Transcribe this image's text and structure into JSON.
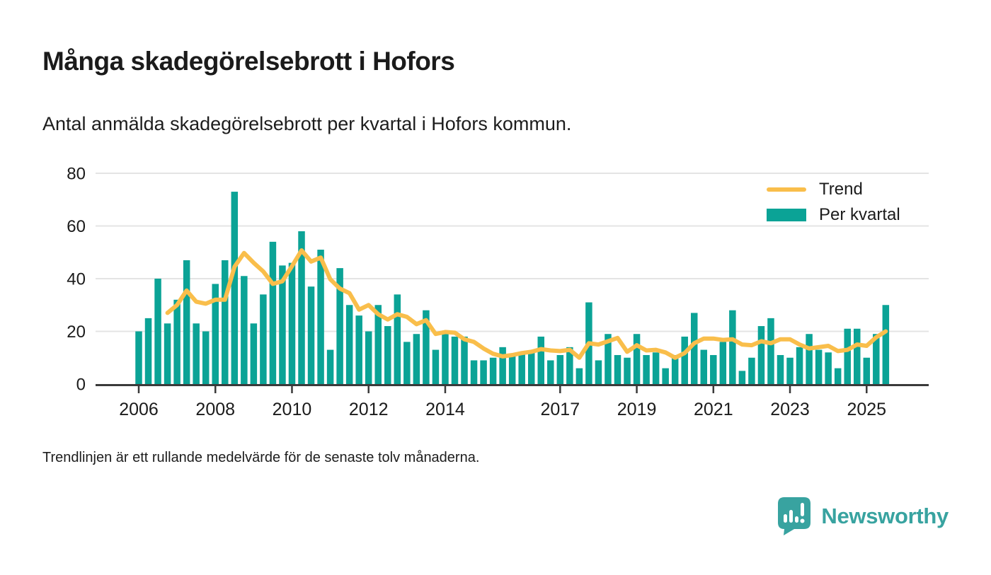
{
  "header": {
    "title": "Många skadegörelsebrott i Hofors",
    "subtitle": "Antal anmälda skadegörelsebrott per kvartal i Hofors kommun."
  },
  "legend": {
    "trend_label": "Trend",
    "bars_label": "Per kvartal"
  },
  "footer": {
    "note": "Trendlinjen är ett rullande medelvärde för de senaste tolv månaderna.",
    "brand": "Newsworthy"
  },
  "colors": {
    "bar": "#0ba396",
    "trend": "#f9be4b",
    "grid": "#e4e4e4",
    "axis": "#3a3a3a",
    "text": "#1b1b1b",
    "brand": "#38a3a0"
  },
  "chart_data": {
    "type": "bar",
    "title": "Många skadegörelsebrott i Hofors",
    "subtitle": "Antal anmälda skadegörelsebrott per kvartal i Hofors kommun.",
    "x_start": "2006 Q1",
    "x_end": "2025 Q3",
    "frequency": "quarterly",
    "ylim": [
      0,
      80
    ],
    "y_ticks": [
      0,
      20,
      40,
      60,
      80
    ],
    "x_tick_labels": [
      "2006",
      "2008",
      "2010",
      "2012",
      "2014",
      "2017",
      "2019",
      "2021",
      "2023",
      "2025"
    ],
    "grid": "horizontal",
    "legend_position": "top-right",
    "bar_series": {
      "name": "Per kvartal",
      "values": [
        20,
        25,
        40,
        23,
        32,
        47,
        23,
        20,
        38,
        47,
        73,
        41,
        23,
        34,
        54,
        45,
        46,
        58,
        37,
        51,
        13,
        44,
        30,
        26,
        20,
        30,
        22,
        34,
        16,
        19,
        28,
        13,
        19,
        18,
        18,
        9,
        9,
        10,
        14,
        11,
        12,
        12,
        18,
        9,
        11,
        14,
        6,
        31,
        9,
        19,
        11,
        10,
        19,
        11,
        12,
        6,
        11,
        18,
        27,
        13,
        11,
        16,
        28,
        5,
        10,
        22,
        25,
        11,
        10,
        14,
        19,
        13,
        12,
        6,
        21,
        21,
        10,
        19,
        30
      ]
    },
    "line_series": {
      "name": "Trend",
      "description": "Rolling mean of last twelve months (4 quarters)",
      "start": "2006 Q4",
      "values": [
        27,
        30,
        35.5,
        31.25,
        30.5,
        32,
        32,
        44.5,
        49.75,
        46,
        42.75,
        38,
        39,
        44.75,
        50.75,
        46.5,
        48,
        39.75,
        36.25,
        34.5,
        28.25,
        30,
        26.5,
        24.5,
        26.5,
        25.5,
        22.75,
        24.25,
        19,
        19.75,
        19.5,
        17,
        16,
        13.5,
        11.5,
        10.5,
        11,
        11.75,
        12.25,
        13.25,
        12.75,
        12.5,
        13,
        10,
        15.5,
        15,
        16.25,
        17.5,
        12.25,
        14.75,
        12.75,
        13,
        12,
        10,
        11.75,
        15.5,
        17.25,
        17.25,
        16.75,
        17,
        15,
        14.75,
        16.25,
        15.5,
        17,
        17,
        15,
        13.5,
        14,
        14.5,
        12.5,
        13,
        15,
        14.5,
        17.75,
        20
      ]
    }
  }
}
